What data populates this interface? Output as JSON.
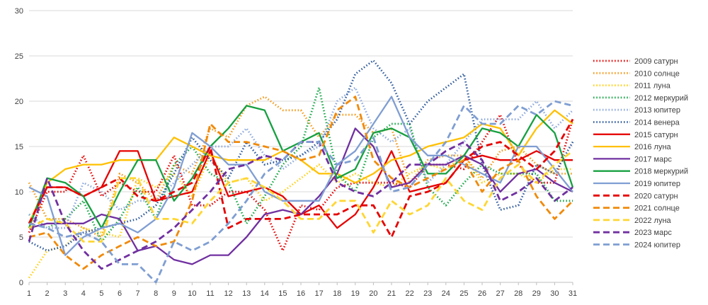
{
  "chart_data": {
    "type": "line",
    "title": "",
    "xlabel": "",
    "ylabel": "",
    "ylim": [
      0,
      30
    ],
    "y_ticks": [
      0,
      5,
      10,
      15,
      20,
      25,
      30
    ],
    "x": [
      1,
      2,
      3,
      4,
      5,
      6,
      7,
      8,
      9,
      10,
      11,
      12,
      13,
      14,
      15,
      16,
      17,
      18,
      19,
      20,
      21,
      22,
      23,
      24,
      25,
      26,
      27,
      28,
      29,
      30,
      31
    ],
    "grid": "horizontal",
    "legend_position": "right",
    "series": [
      {
        "name": "2009 сатурн",
        "color": "#e60000",
        "dash": "dot",
        "values": [
          5.5,
          10,
          10,
          14,
          9.5,
          11,
          10,
          10,
          14,
          8.5,
          8.5,
          10,
          10,
          8,
          3.5,
          8.5,
          8,
          10.5,
          11,
          11,
          11,
          10.5,
          13,
          13,
          12.5,
          15.5,
          18.5,
          13,
          11,
          11,
          18
        ]
      },
      {
        "name": "2010 солнце",
        "color": "#f39a1c",
        "dash": "dot",
        "values": [
          11,
          7,
          7,
          6,
          5,
          12,
          11,
          9,
          13,
          12,
          17,
          16,
          19.5,
          20.5,
          19,
          19,
          16,
          18.5,
          18.5,
          16.5,
          17,
          11,
          13.5,
          14,
          14,
          11.5,
          14.5,
          15,
          13,
          12,
          12
        ]
      },
      {
        "name": "2011 луна",
        "color": "#ffd11a",
        "dash": "dot",
        "values": [
          0.5,
          3.5,
          4,
          6,
          5.5,
          5,
          11.5,
          10.5,
          12,
          9.5,
          14,
          11,
          11.5,
          9,
          10,
          11.5,
          13,
          11,
          12,
          11,
          10.5,
          12,
          13,
          12.5,
          14,
          11,
          12,
          12,
          11,
          12.5,
          12.5
        ]
      },
      {
        "name": "2012 меркурий",
        "color": "#1aa848",
        "dash": "dot",
        "values": [
          7.5,
          6,
          7,
          9,
          4.5,
          7,
          10.5,
          7,
          13,
          15,
          12,
          11,
          6.5,
          9.5,
          13,
          15,
          21.5,
          12,
          10,
          16,
          17.5,
          17.5,
          10.5,
          8.5,
          11,
          13,
          12,
          12,
          12,
          9,
          9
        ]
      },
      {
        "name": "2013 юпитер",
        "color": "#8faadc",
        "dash": "dot",
        "values": [
          7.5,
          6,
          6,
          11,
          10,
          8,
          9,
          9,
          11,
          13,
          15,
          15,
          17,
          14,
          12.5,
          14,
          15,
          20,
          21.5,
          17,
          15.5,
          17,
          11,
          13,
          15.5,
          18,
          18,
          18,
          20,
          17,
          19
        ]
      },
      {
        "name": "2014 венера",
        "color": "#2e5a9c",
        "dash": "dot",
        "values": [
          4.5,
          3.5,
          4,
          5.5,
          6,
          6.5,
          7,
          8.5,
          12,
          16,
          13.5,
          11.5,
          15.5,
          13,
          13.5,
          14,
          15.5,
          18,
          23,
          24.5,
          22,
          17.5,
          20,
          21.5,
          23,
          13,
          8,
          8.5,
          13,
          12,
          15.5
        ]
      },
      {
        "name": "2015 сатурн",
        "color": "#e60000",
        "dash": "solid",
        "values": [
          6.5,
          10.5,
          10.5,
          9.5,
          10.5,
          14.5,
          14.5,
          9,
          9.5,
          10,
          14.5,
          9.5,
          10,
          10.5,
          9.5,
          7.5,
          8.5,
          6,
          7.5,
          10.5,
          14.5,
          10,
          10.5,
          11,
          13.5,
          14,
          13.5,
          13.5,
          14.5,
          13.5,
          13.5
        ]
      },
      {
        "name": "2016 луна",
        "color": "#ffc000",
        "dash": "solid",
        "values": [
          6.5,
          11,
          12.5,
          13,
          13,
          13.5,
          13.5,
          13.5,
          16,
          15,
          14,
          13.5,
          13.5,
          13.5,
          14.5,
          13.5,
          12,
          12,
          11,
          12,
          13.5,
          14,
          15,
          15.5,
          16,
          17.5,
          17,
          14,
          17,
          19,
          17.5
        ]
      },
      {
        "name": "2017 марс",
        "color": "#7030a0",
        "dash": "solid",
        "values": [
          6,
          6.5,
          6.5,
          6.5,
          7.5,
          7,
          3.5,
          4,
          2.5,
          2,
          3,
          3,
          5,
          7.5,
          8,
          7.5,
          9.5,
          12,
          17,
          15,
          10.5,
          11,
          13,
          13,
          14,
          13,
          10,
          12,
          12.5,
          11,
          10
        ]
      },
      {
        "name": "2018 меркурий",
        "color": "#17a041",
        "dash": "solid",
        "values": [
          6,
          11.5,
          11,
          9.5,
          6,
          10,
          13.5,
          13.5,
          9,
          11.5,
          15,
          17,
          19.5,
          19,
          14.5,
          15.5,
          16.5,
          11.5,
          12.5,
          16.5,
          17,
          16,
          12,
          12,
          14,
          17,
          16.5,
          15,
          18.5,
          16.5,
          10.5
        ]
      },
      {
        "name": "2019 юпитер",
        "color": "#7f9ed2",
        "dash": "solid",
        "values": [
          10.5,
          9.5,
          3,
          5,
          6,
          6.5,
          5.5,
          7,
          10.5,
          16.5,
          15,
          13,
          13,
          10,
          9,
          9,
          9,
          13,
          14.5,
          17.5,
          20.5,
          16,
          14,
          14,
          13,
          12,
          11,
          15,
          15,
          12.5,
          10
        ]
      },
      {
        "name": "2020 сатурн",
        "color": "#e60000",
        "dash": "dash",
        "values": [
          6.5,
          10.5,
          10.5,
          9.5,
          10.5,
          11.5,
          9.5,
          9,
          10,
          11,
          15,
          6,
          7,
          7,
          7,
          7.5,
          7.5,
          7.5,
          8.5,
          8.5,
          5,
          9.5,
          10,
          11,
          13.5,
          15,
          15.5,
          14,
          12.5,
          14.5,
          18
        ]
      },
      {
        "name": "2021 солнце",
        "color": "#f08a0a",
        "dash": "dash",
        "values": [
          5,
          5.5,
          3,
          1.5,
          3,
          4,
          5,
          4,
          4.5,
          9,
          17.5,
          15.5,
          15.5,
          15,
          14.5,
          13.5,
          14,
          19,
          20.5,
          13.5,
          11.5,
          10.5,
          11.5,
          12.5,
          13.5,
          10,
          12.5,
          13.5,
          9.5,
          7,
          9
        ]
      },
      {
        "name": "2022 луна",
        "color": "#ffd633",
        "dash": "dash",
        "values": [
          6,
          7,
          6.5,
          4.5,
          4.5,
          11.5,
          11.5,
          7,
          7,
          6.5,
          9,
          11,
          11.5,
          10.5,
          9,
          7,
          7,
          9,
          9,
          5.5,
          9,
          7.5,
          8.5,
          11.5,
          9,
          8,
          11.5,
          13,
          11,
          13,
          14.5
        ]
      },
      {
        "name": "2023 марс",
        "color": "#7030a0",
        "dash": "dash",
        "values": [
          4.5,
          11.5,
          6.5,
          3.5,
          1.5,
          2.5,
          3.5,
          4.5,
          6,
          8,
          10,
          12.5,
          13,
          14,
          13.5,
          15.5,
          15.5,
          11,
          10,
          9.5,
          11,
          13,
          13,
          14.5,
          15.5,
          13.5,
          9,
          10,
          11.5,
          9,
          10.5
        ]
      },
      {
        "name": "2024 юпитер",
        "color": "#7f9ed2",
        "dash": "dash",
        "values": [
          6.5,
          6,
          5,
          5.5,
          4.5,
          2,
          2,
          0,
          4.5,
          3.5,
          4.5,
          6.5,
          9,
          12,
          13.5,
          15.5,
          15.5,
          13,
          13.5,
          16,
          10,
          10.5,
          13,
          15.5,
          19.5,
          17.5,
          17.5,
          19.5,
          18.5,
          20,
          19.5
        ]
      }
    ]
  }
}
